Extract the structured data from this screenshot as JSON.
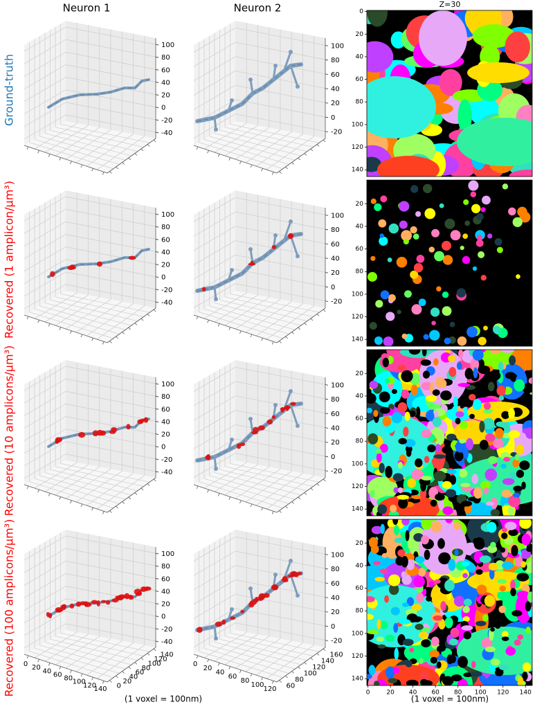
{
  "columns": [
    "Neuron 1",
    "Neuron 2",
    "Z=30"
  ],
  "rows": [
    "Ground-truth",
    "Recovered (1 amplicon/μm³)",
    "Recovered (10 amplicons/μm³)",
    "Recovered (100 amplicons/μm³)"
  ],
  "neuron_1": {
    "zlim": [
      -50,
      110
    ],
    "zticks": [
      100,
      80,
      60,
      40,
      20,
      0,
      -20,
      -40
    ],
    "xticks": [
      0,
      20,
      40,
      60,
      80,
      100,
      120,
      140
    ],
    "yticks": [
      0,
      20,
      40,
      60,
      80,
      100,
      120,
      140
    ]
  },
  "neuron_2": {
    "zlim": [
      -30,
      110
    ],
    "zticks": [
      100,
      80,
      60,
      40,
      20,
      0,
      -20
    ],
    "xticks": [
      0,
      20,
      40,
      60,
      80,
      100,
      120
    ],
    "yticks": [
      60,
      80,
      100,
      120,
      140,
      160
    ]
  },
  "z_slice": {
    "ylim": [
      -1,
      146
    ],
    "xlim": [
      -1,
      146
    ],
    "yticks_first": [
      0,
      20,
      40,
      60,
      80,
      100,
      120,
      140
    ],
    "yticks": [
      20,
      40,
      60,
      80,
      100,
      120,
      140
    ],
    "xticks": [
      0,
      20,
      40,
      60,
      80,
      100,
      120,
      140
    ]
  },
  "captions": [
    "(1 voxel = 100nm)",
    "(1 voxel = 100nm)"
  ]
}
